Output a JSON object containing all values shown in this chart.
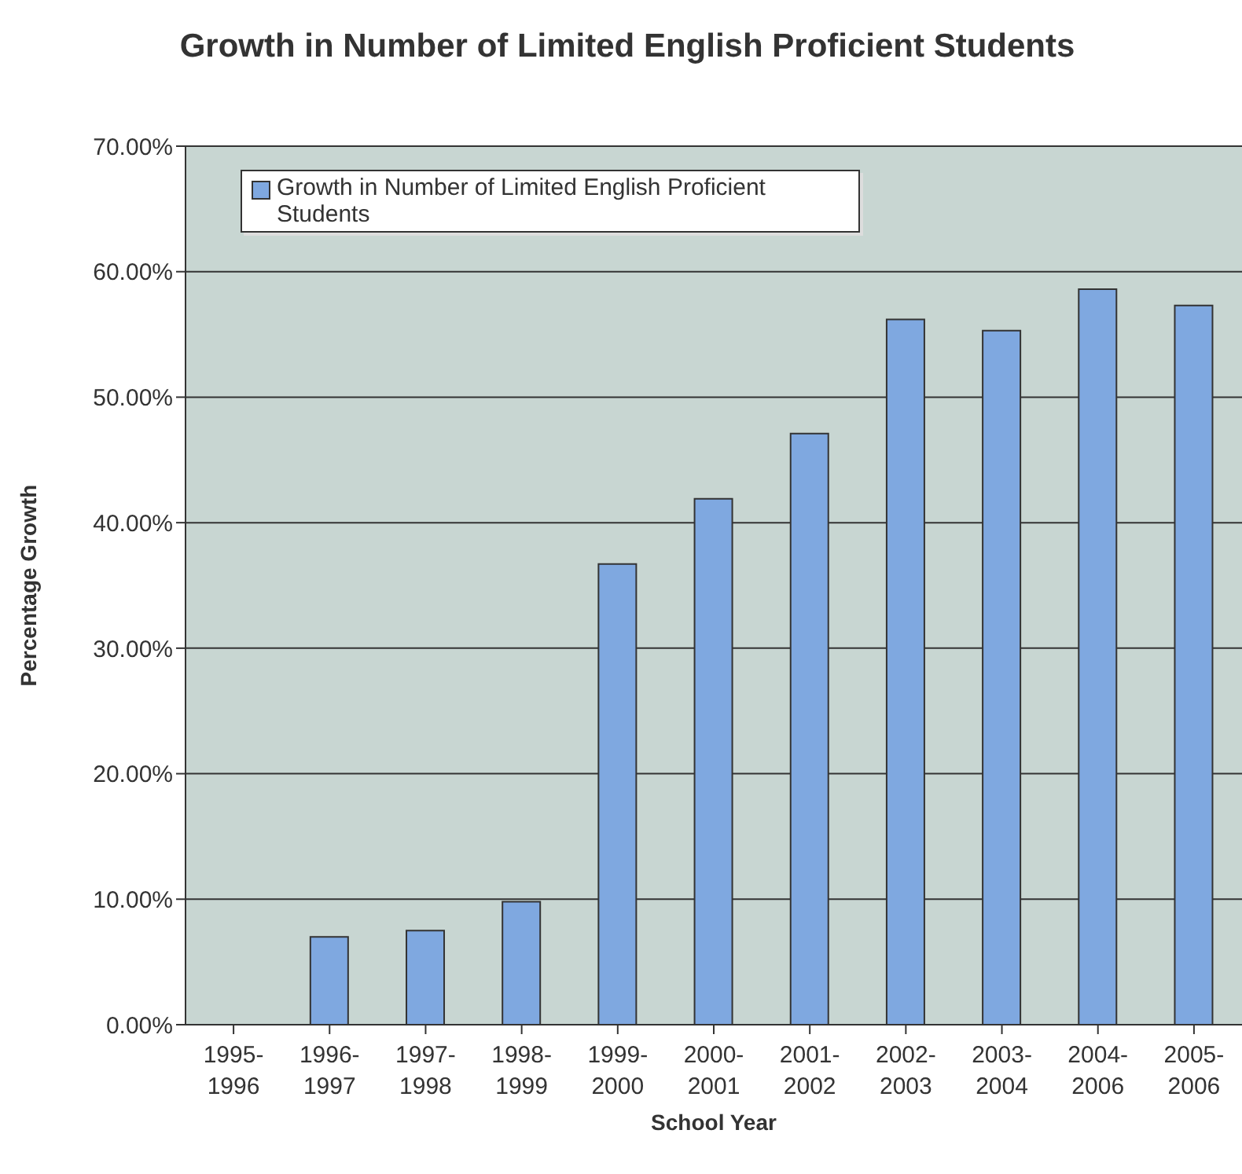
{
  "chart_data": {
    "type": "bar",
    "title": "Growth in Number of Limited English Proficient Students",
    "xlabel": "School Year",
    "ylabel": "Percentage Growth",
    "categories": [
      "1995-1996",
      "1996-1997",
      "1997-1998",
      "1998-1999",
      "1999-2000",
      "2000-2001",
      "2001-2002",
      "2002-2003",
      "2003-2004",
      "2004-2006",
      "2005-2006"
    ],
    "series": [
      {
        "name": "Growth in Number of Limited English Proficient Students",
        "color": "#7fa8e0",
        "values": [
          0,
          7.0,
          7.5,
          9.8,
          36.7,
          41.9,
          47.1,
          56.2,
          55.3,
          58.6,
          57.3
        ]
      }
    ],
    "ylim": [
      0,
      70
    ],
    "yticks": [
      {
        "value": 0,
        "label": "0.00%"
      },
      {
        "value": 10,
        "label": "10.00%"
      },
      {
        "value": 20,
        "label": "20.00%"
      },
      {
        "value": 30,
        "label": "30.00%"
      },
      {
        "value": 40,
        "label": "40.00%"
      },
      {
        "value": 50,
        "label": "50.00%"
      },
      {
        "value": 60,
        "label": "60.00%"
      },
      {
        "value": 70,
        "label": "70.00%"
      }
    ],
    "grid": "y",
    "legend": "top left"
  }
}
